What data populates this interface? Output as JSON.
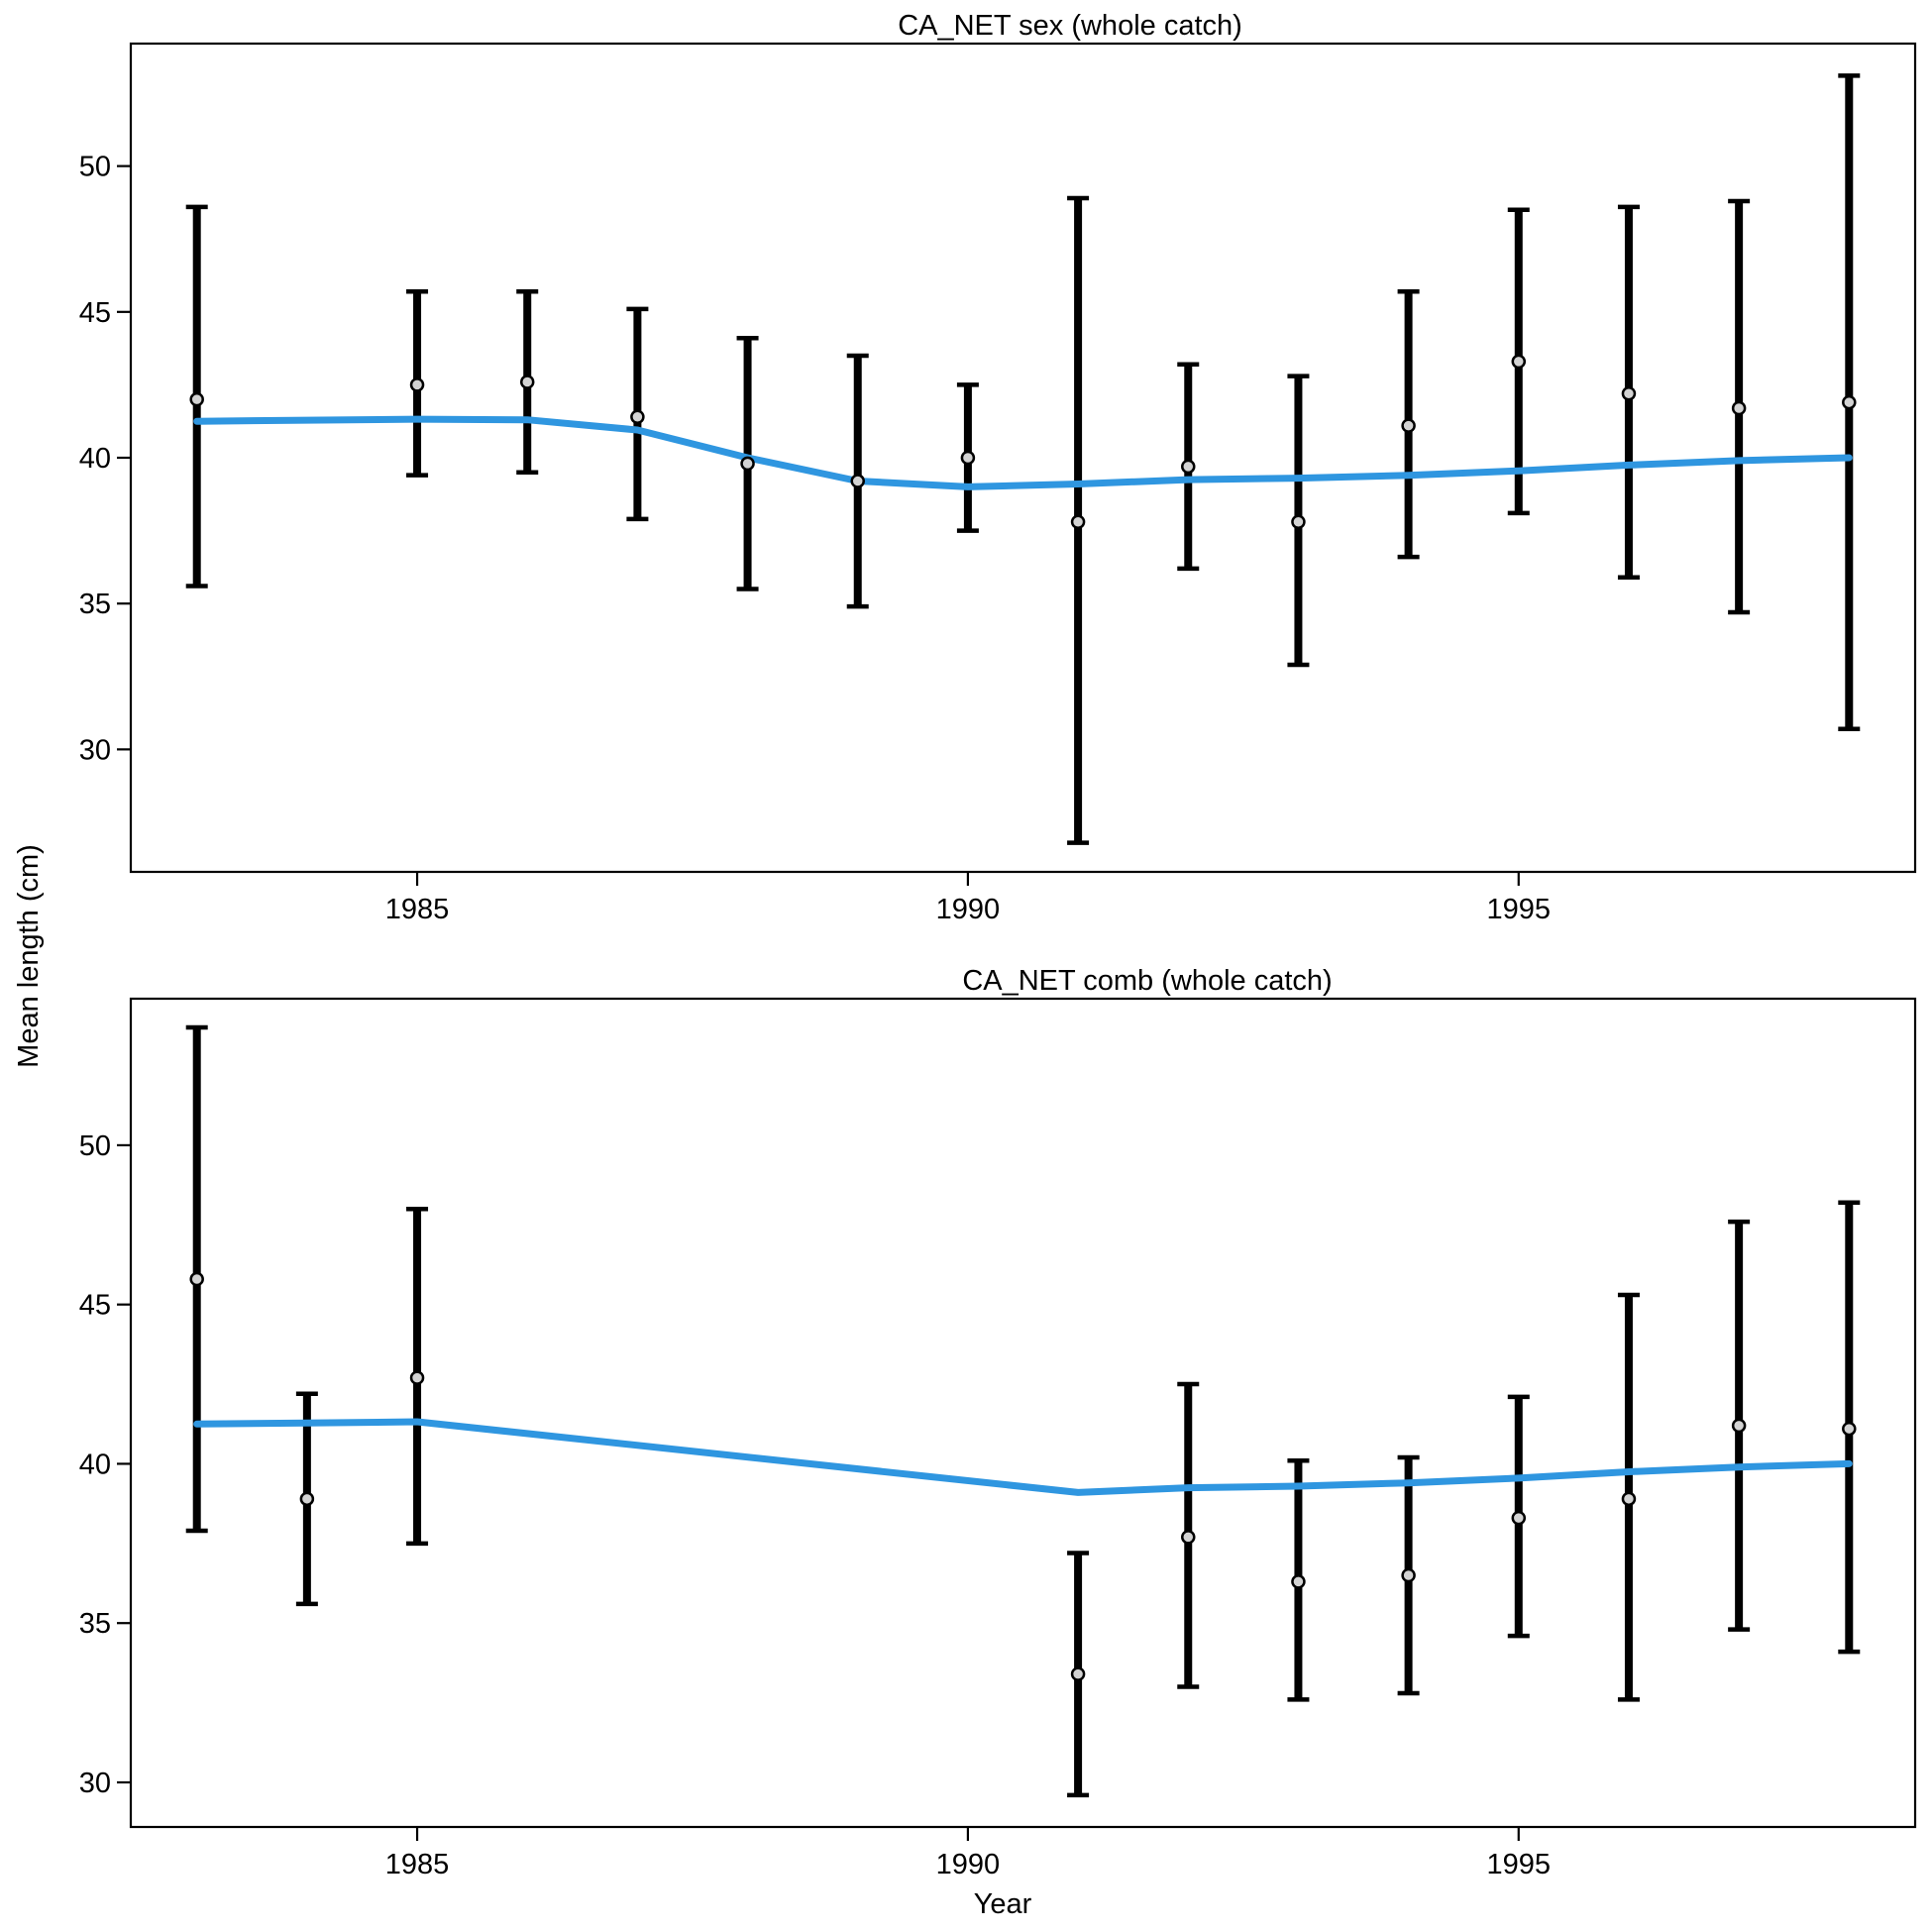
{
  "colors": {
    "fit_line": "#2f96e0",
    "error_bar": "#000000",
    "point_fill": "#d3d3d3",
    "point_stroke": "#000000",
    "background": "#ffffff"
  },
  "figure": {
    "xlabel": "Year",
    "ylabel": "Mean length (cm)"
  },
  "chart_data": [
    {
      "type": "scatter",
      "title": "CA_NET sex (whole catch)",
      "xlabel": "Year",
      "ylabel": "Mean length (cm)",
      "xlim": [
        1982.4,
        1998.6
      ],
      "ylim": [
        25.8,
        54.2
      ],
      "xticks": [
        1985,
        1990,
        1995
      ],
      "yticks": [
        30,
        35,
        40,
        45,
        50
      ],
      "grid": false,
      "series": [
        {
          "kind": "observed",
          "points": [
            {
              "x": 1983,
              "y": 42.0,
              "lo": 35.6,
              "hi": 48.6
            },
            {
              "x": 1985,
              "y": 42.5,
              "lo": 39.4,
              "hi": 45.7
            },
            {
              "x": 1986,
              "y": 42.6,
              "lo": 39.5,
              "hi": 45.7
            },
            {
              "x": 1987,
              "y": 41.4,
              "lo": 37.9,
              "hi": 45.1
            },
            {
              "x": 1988,
              "y": 39.8,
              "lo": 35.5,
              "hi": 44.1
            },
            {
              "x": 1989,
              "y": 39.2,
              "lo": 34.9,
              "hi": 43.5
            },
            {
              "x": 1990,
              "y": 40.0,
              "lo": 37.5,
              "hi": 42.5
            },
            {
              "x": 1991,
              "y": 37.8,
              "lo": 26.8,
              "hi": 48.9
            },
            {
              "x": 1992,
              "y": 39.7,
              "lo": 36.2,
              "hi": 43.2
            },
            {
              "x": 1993,
              "y": 37.8,
              "lo": 32.9,
              "hi": 42.8
            },
            {
              "x": 1994,
              "y": 41.1,
              "lo": 36.6,
              "hi": 45.7
            },
            {
              "x": 1995,
              "y": 43.3,
              "lo": 38.1,
              "hi": 48.5
            },
            {
              "x": 1996,
              "y": 42.2,
              "lo": 35.9,
              "hi": 48.6
            },
            {
              "x": 1997,
              "y": 41.7,
              "lo": 34.7,
              "hi": 48.8
            },
            {
              "x": 1998,
              "y": 41.9,
              "lo": 30.7,
              "hi": 53.1
            }
          ]
        },
        {
          "kind": "expected",
          "points": [
            {
              "x": 1983,
              "y": 41.25
            },
            {
              "x": 1985,
              "y": 41.32
            },
            {
              "x": 1986,
              "y": 41.3
            },
            {
              "x": 1987,
              "y": 40.95
            },
            {
              "x": 1988,
              "y": 40.0
            },
            {
              "x": 1989,
              "y": 39.2
            },
            {
              "x": 1990,
              "y": 39.0
            },
            {
              "x": 1991,
              "y": 39.1
            },
            {
              "x": 1992,
              "y": 39.25
            },
            {
              "x": 1993,
              "y": 39.3
            },
            {
              "x": 1994,
              "y": 39.4
            },
            {
              "x": 1995,
              "y": 39.55
            },
            {
              "x": 1996,
              "y": 39.75
            },
            {
              "x": 1997,
              "y": 39.9
            },
            {
              "x": 1998,
              "y": 40.0
            }
          ]
        }
      ]
    },
    {
      "type": "scatter",
      "title": "CA_NET comb (whole catch)",
      "xlabel": "Year",
      "ylabel": "Mean length (cm)",
      "xlim": [
        1982.4,
        1998.6
      ],
      "ylim": [
        28.6,
        54.6
      ],
      "xticks": [
        1985,
        1990,
        1995
      ],
      "yticks": [
        30,
        35,
        40,
        45,
        50
      ],
      "grid": false,
      "series": [
        {
          "kind": "observed",
          "points": [
            {
              "x": 1983,
              "y": 45.8,
              "lo": 37.9,
              "hi": 53.7
            },
            {
              "x": 1984,
              "y": 38.9,
              "lo": 35.6,
              "hi": 42.2
            },
            {
              "x": 1985,
              "y": 42.7,
              "lo": 37.5,
              "hi": 48.0
            },
            {
              "x": 1991,
              "y": 33.4,
              "lo": 29.6,
              "hi": 37.2
            },
            {
              "x": 1992,
              "y": 37.7,
              "lo": 33.0,
              "hi": 42.5
            },
            {
              "x": 1993,
              "y": 36.3,
              "lo": 32.6,
              "hi": 40.1
            },
            {
              "x": 1994,
              "y": 36.5,
              "lo": 32.8,
              "hi": 40.2
            },
            {
              "x": 1995,
              "y": 38.3,
              "lo": 34.6,
              "hi": 42.1
            },
            {
              "x": 1996,
              "y": 38.9,
              "lo": 32.6,
              "hi": 45.3
            },
            {
              "x": 1997,
              "y": 41.2,
              "lo": 34.8,
              "hi": 47.6
            },
            {
              "x": 1998,
              "y": 41.1,
              "lo": 34.1,
              "hi": 48.2
            }
          ]
        },
        {
          "kind": "expected",
          "points": [
            {
              "x": 1983,
              "y": 41.25
            },
            {
              "x": 1984,
              "y": 41.28
            },
            {
              "x": 1985,
              "y": 41.32
            },
            {
              "x": 1991,
              "y": 39.1
            },
            {
              "x": 1992,
              "y": 39.25
            },
            {
              "x": 1993,
              "y": 39.3
            },
            {
              "x": 1994,
              "y": 39.4
            },
            {
              "x": 1995,
              "y": 39.55
            },
            {
              "x": 1996,
              "y": 39.75
            },
            {
              "x": 1997,
              "y": 39.9
            },
            {
              "x": 1998,
              "y": 40.0
            }
          ]
        }
      ]
    }
  ]
}
